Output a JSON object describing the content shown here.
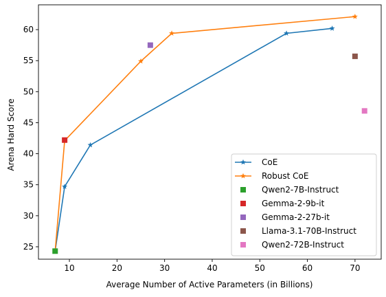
{
  "chart_data": {
    "type": "scatter",
    "xlabel": "Average Number of Active Parameters  (in Billions)",
    "ylabel": "Arena Hard Score",
    "xlim": [
      3.5,
      75.5
    ],
    "ylim": [
      23,
      64
    ],
    "xticks": [
      10,
      20,
      30,
      40,
      50,
      60,
      70
    ],
    "yticks": [
      25,
      30,
      35,
      40,
      45,
      50,
      55,
      60
    ],
    "grid": false,
    "legend_position": "lower right",
    "series": [
      {
        "name": "CoE",
        "kind": "line",
        "marker": "star",
        "color": "#1f77b4",
        "points": [
          [
            7,
            24.3
          ],
          [
            9,
            34.7
          ],
          [
            14.4,
            41.4
          ],
          [
            55.6,
            59.4
          ],
          [
            65.2,
            60.2
          ]
        ]
      },
      {
        "name": "Robust CoE",
        "kind": "line",
        "marker": "star",
        "color": "#ff7f0e",
        "points": [
          [
            7,
            24.3
          ],
          [
            9,
            42.1
          ],
          [
            25,
            54.9
          ],
          [
            31.5,
            59.4
          ],
          [
            70,
            62.1
          ]
        ]
      },
      {
        "name": "Qwen2-7B-Instruct",
        "kind": "scatter",
        "marker": "square",
        "color": "#2ca02c",
        "points": [
          [
            7,
            24.3
          ]
        ]
      },
      {
        "name": "Gemma-2-9b-it",
        "kind": "scatter",
        "marker": "square",
        "color": "#d62728",
        "points": [
          [
            9,
            42.2
          ]
        ]
      },
      {
        "name": "Gemma-2-27b-it",
        "kind": "scatter",
        "marker": "square",
        "color": "#9467bd",
        "points": [
          [
            27,
            57.5
          ]
        ]
      },
      {
        "name": "Llama-3.1-70B-Instruct",
        "kind": "scatter",
        "marker": "square",
        "color": "#8c564b",
        "points": [
          [
            70,
            55.7
          ]
        ]
      },
      {
        "name": "Qwen2-72B-Instruct",
        "kind": "scatter",
        "marker": "square",
        "color": "#e377c2",
        "points": [
          [
            72,
            46.9
          ]
        ]
      }
    ]
  }
}
